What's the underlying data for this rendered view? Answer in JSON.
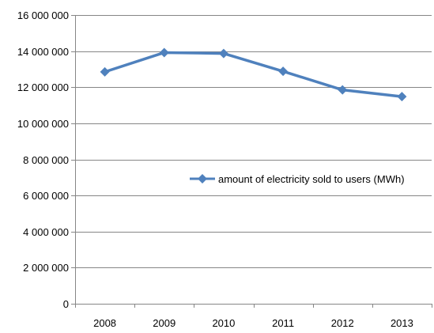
{
  "chart_data": {
    "type": "line",
    "title": "",
    "xlabel": "",
    "ylabel": "",
    "categories": [
      "2008",
      "2009",
      "2010",
      "2011",
      "2012",
      "2013"
    ],
    "series": [
      {
        "name": "amount of electricity sold to users (MWh)",
        "values": [
          12850000,
          13920000,
          13870000,
          12880000,
          11850000,
          11480000
        ],
        "color": "#4f81bd"
      }
    ],
    "ylim": [
      0,
      16000000
    ],
    "yticks": [
      0,
      2000000,
      4000000,
      6000000,
      8000000,
      10000000,
      12000000,
      14000000,
      16000000
    ],
    "ytick_labels": [
      "0",
      "2 000 000",
      "4 000 000",
      "6 000 000",
      "8 000 000",
      "10 000 000",
      "12 000 000",
      "14 000 000",
      "16 000 000"
    ],
    "grid": true,
    "legend": {
      "placement": "center-right",
      "label": "amount of electricity sold to users (MWh)"
    },
    "colors": {
      "series": "#4f81bd",
      "grid": "#868686",
      "axis": "#868686"
    }
  }
}
